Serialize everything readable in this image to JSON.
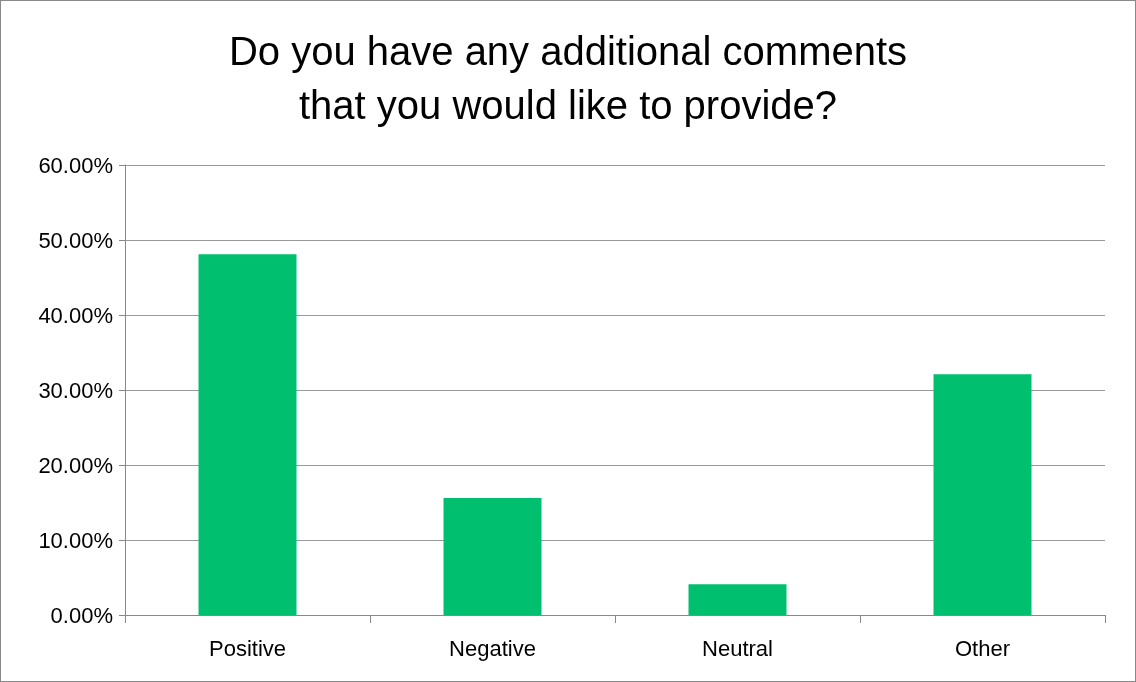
{
  "chart_data": {
    "type": "bar",
    "title": "Do you have any additional comments\nthat you would like to provide?",
    "categories": [
      "Positive",
      "Negative",
      "Neutral",
      "Other"
    ],
    "values": [
      48.1,
      15.6,
      4.1,
      32.1
    ],
    "color": "#00bf6f",
    "ylim": [
      0,
      60
    ],
    "yticks": [
      {
        "value": 0,
        "label": "0.00%"
      },
      {
        "value": 10,
        "label": "10.00%"
      },
      {
        "value": 20,
        "label": "20.00%"
      },
      {
        "value": 30,
        "label": "30.00%"
      },
      {
        "value": 40,
        "label": "40.00%"
      },
      {
        "value": 50,
        "label": "50.00%"
      },
      {
        "value": 60,
        "label": "60.00%"
      }
    ],
    "grid": "y"
  }
}
